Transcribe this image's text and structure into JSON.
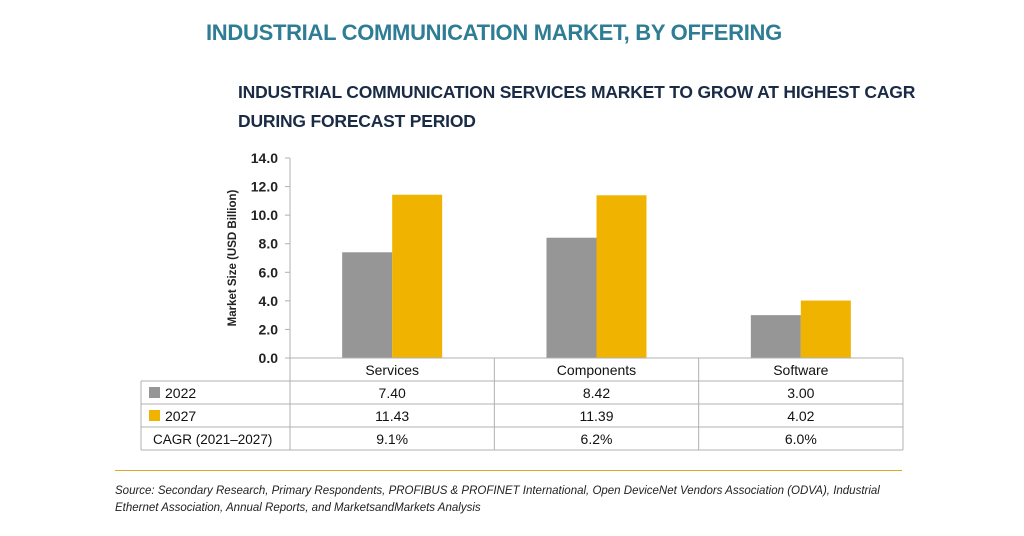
{
  "header": {
    "title": "INDUSTRIAL COMMUNICATION MARKET, BY OFFERING",
    "subtitle": "INDUSTRIAL COMMUNICATION SERVICES MARKET TO GROW AT HIGHEST CAGR DURING FORECAST PERIOD"
  },
  "chart_data": {
    "type": "bar",
    "ylabel": "Market  Size (USD Billion)",
    "ylim": [
      0,
      14
    ],
    "yticks": [
      "0.0",
      "2.0",
      "4.0",
      "6.0",
      "8.0",
      "10.0",
      "12.0",
      "14.0"
    ],
    "categories": [
      "Services",
      "Components",
      "Software"
    ],
    "series": [
      {
        "name": "2022",
        "values": [
          7.4,
          8.42,
          3.0
        ],
        "labels": [
          "7.40",
          "8.42",
          "3.00"
        ],
        "color": "#969696"
      },
      {
        "name": "2027",
        "values": [
          11.43,
          11.39,
          4.02
        ],
        "labels": [
          "11.43",
          "11.39",
          "4.02"
        ],
        "color": "#f0b400"
      }
    ],
    "cagr": {
      "name": "CAGR (2021–2027)",
      "values": [
        "9.1%",
        "6.2%",
        "6.0%"
      ]
    },
    "grid": false,
    "legend": "table-rows"
  },
  "footer": {
    "source": "Source: Secondary Research, Primary Respondents, PROFIBUS & PROFINET International, Open DeviceNet Vendors Association (ODVA), Industrial Ethernet Association, Annual Reports, and MarketsandMarkets Analysis"
  }
}
